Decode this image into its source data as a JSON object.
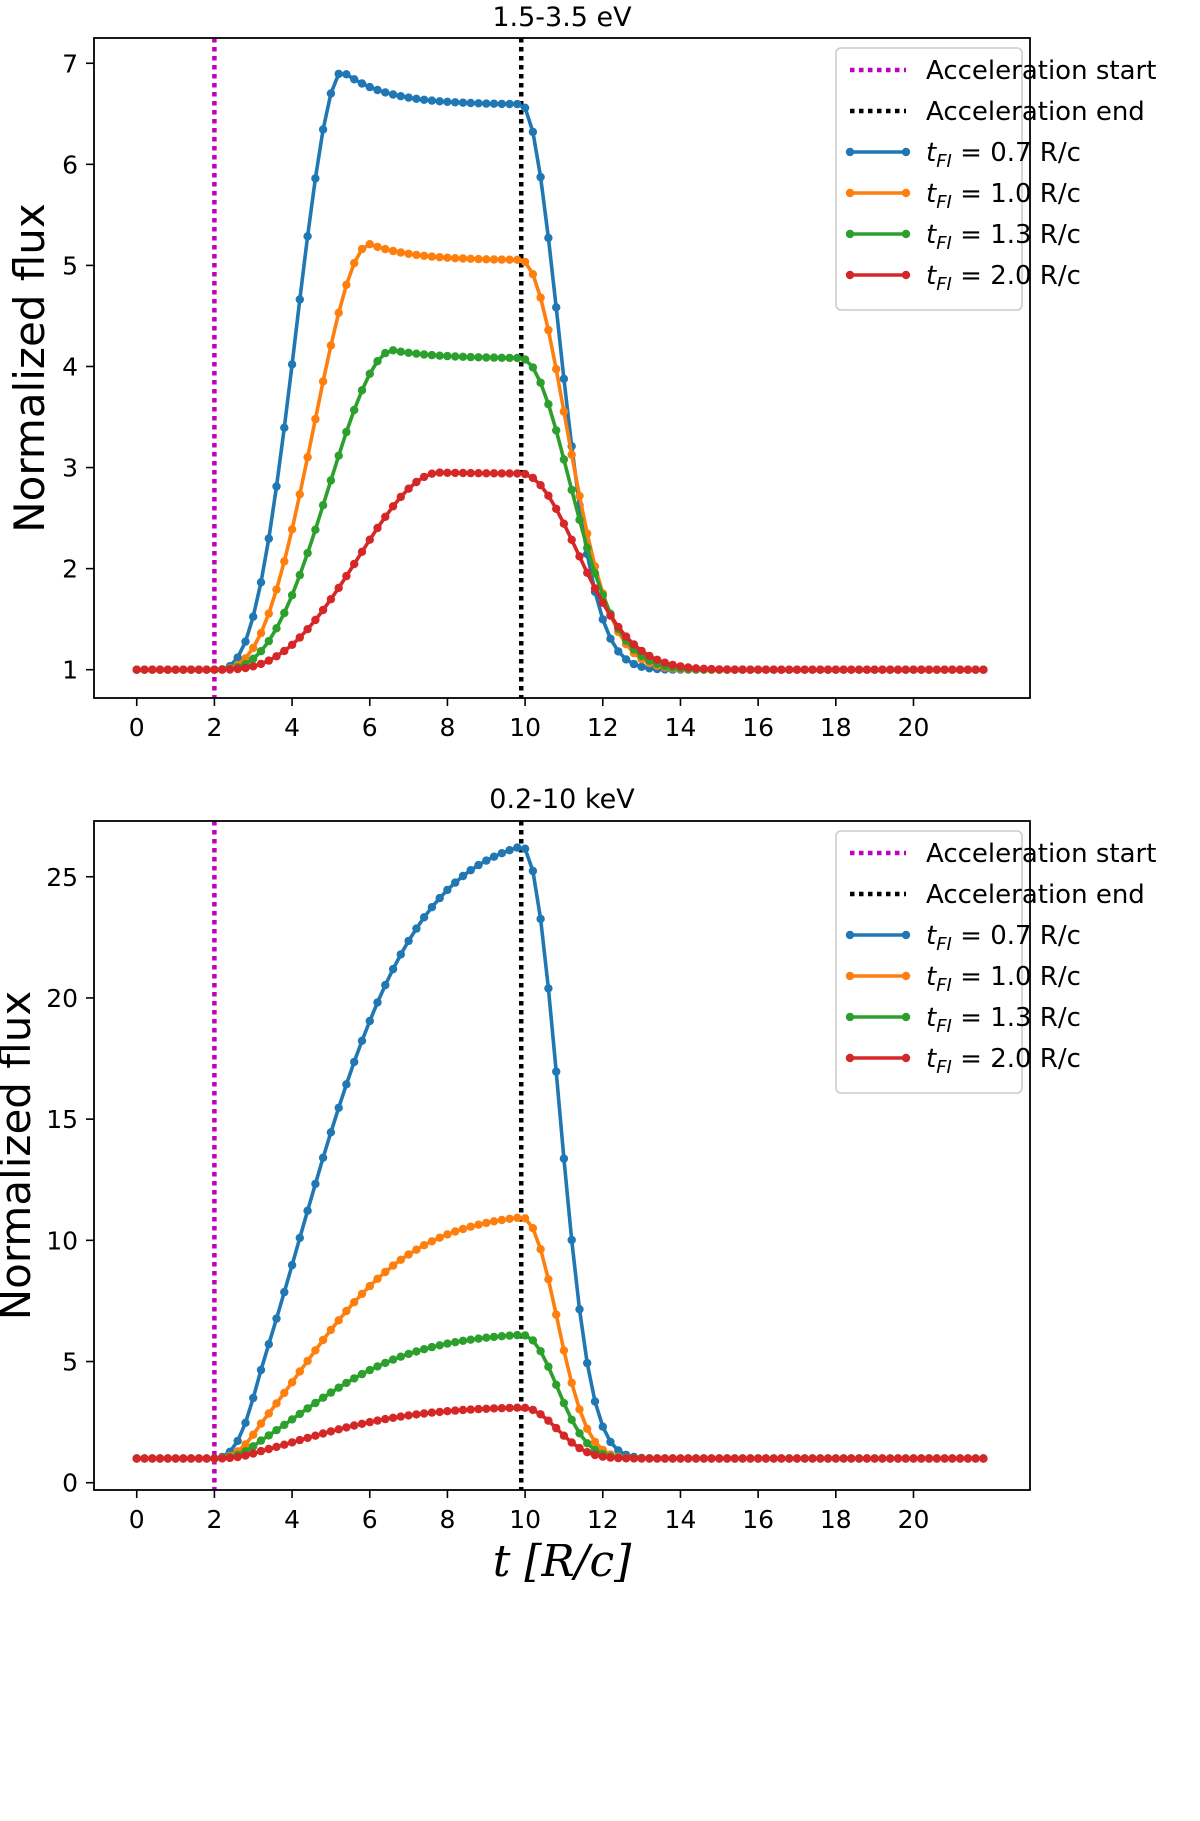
{
  "chart_data": [
    {
      "type": "line",
      "title": "1.5-3.5 eV",
      "xlabel": "",
      "ylabel": "Normalized flux",
      "xlim": [
        -1.1,
        23.0
      ],
      "ylim": [
        0.72,
        7.25
      ],
      "xticks": [
        0,
        2,
        4,
        6,
        8,
        10,
        12,
        14,
        16,
        18,
        20
      ],
      "yticks": [
        1,
        2,
        3,
        4,
        5,
        6,
        7
      ],
      "grid": false,
      "legend_position": "top-right",
      "vlines": [
        {
          "name": "Acceleration start",
          "x": 2.0,
          "color": "#bf00bf"
        },
        {
          "name": "Acceleration end",
          "x": 9.9,
          "color": "#000000"
        }
      ],
      "series": [
        {
          "name": "0.7 R/c",
          "label_main": "t",
          "label_sub": "FI",
          "label_rest": " = 0.7 R/c",
          "color": "#1f77b4",
          "peak": 6.92,
          "peak_t": 5.3,
          "plateau": 6.59,
          "rise_tau": 0.7,
          "decay_tau": 1.0
        },
        {
          "name": "1.0 R/c",
          "label_main": "t",
          "label_sub": "FI",
          "label_rest": " = 1.0 R/c",
          "color": "#ff7f0e",
          "peak": 5.21,
          "peak_t": 6.0,
          "plateau": 5.05,
          "rise_tau": 1.0,
          "decay_tau": 1.2
        },
        {
          "name": "1.3 R/c",
          "label_main": "t",
          "label_sub": "FI",
          "label_rest": " = 1.3 R/c",
          "color": "#2ca02c",
          "peak": 4.16,
          "peak_t": 6.6,
          "plateau": 4.08,
          "rise_tau": 1.3,
          "decay_tau": 1.3
        },
        {
          "name": "2.0 R/c",
          "label_main": "t",
          "label_sub": "FI",
          "label_rest": " = 2.0 R/c",
          "color": "#d62728",
          "peak": 2.95,
          "peak_t": 7.8,
          "plateau": 2.94,
          "rise_tau": 2.0,
          "decay_tau": 1.5
        }
      ]
    },
    {
      "type": "line",
      "title": "0.2-10 keV",
      "xlabel": "t [R/c]",
      "ylabel": "Normalized flux",
      "xlim": [
        -1.1,
        23.0
      ],
      "ylim": [
        -0.3,
        27.3
      ],
      "xticks": [
        0,
        2,
        4,
        6,
        8,
        10,
        12,
        14,
        16,
        18,
        20
      ],
      "yticks": [
        0,
        5,
        10,
        15,
        20,
        25
      ],
      "grid": false,
      "legend_position": "top-right",
      "vlines": [
        {
          "name": "Acceleration start",
          "x": 2.0,
          "color": "#bf00bf"
        },
        {
          "name": "Acceleration end",
          "x": 9.9,
          "color": "#000000"
        }
      ],
      "series": [
        {
          "name": "0.7 R/c",
          "label_main": "t",
          "label_sub": "FI",
          "label_rest": " = 0.7 R/c",
          "color": "#1f77b4",
          "peak": 26.25,
          "rise_tau": 3.2,
          "decay_tau": 0.95
        },
        {
          "name": "1.0 R/c",
          "label_main": "t",
          "label_sub": "FI",
          "label_rest": " = 1.0 R/c",
          "color": "#ff7f0e",
          "peak": 10.95,
          "rise_tau": 4.3,
          "decay_tau": 0.9
        },
        {
          "name": "1.3 R/c",
          "label_main": "t",
          "label_sub": "FI",
          "label_rest": " = 1.3 R/c",
          "color": "#2ca02c",
          "peak": 6.1,
          "rise_tau": 4.6,
          "decay_tau": 0.9
        },
        {
          "name": "2.0 R/c",
          "label_main": "t",
          "label_sub": "FI",
          "label_rest": " = 2.0 R/c",
          "color": "#d62728",
          "peak": 3.1,
          "rise_tau": 2.8,
          "decay_tau": 0.9
        }
      ]
    }
  ]
}
